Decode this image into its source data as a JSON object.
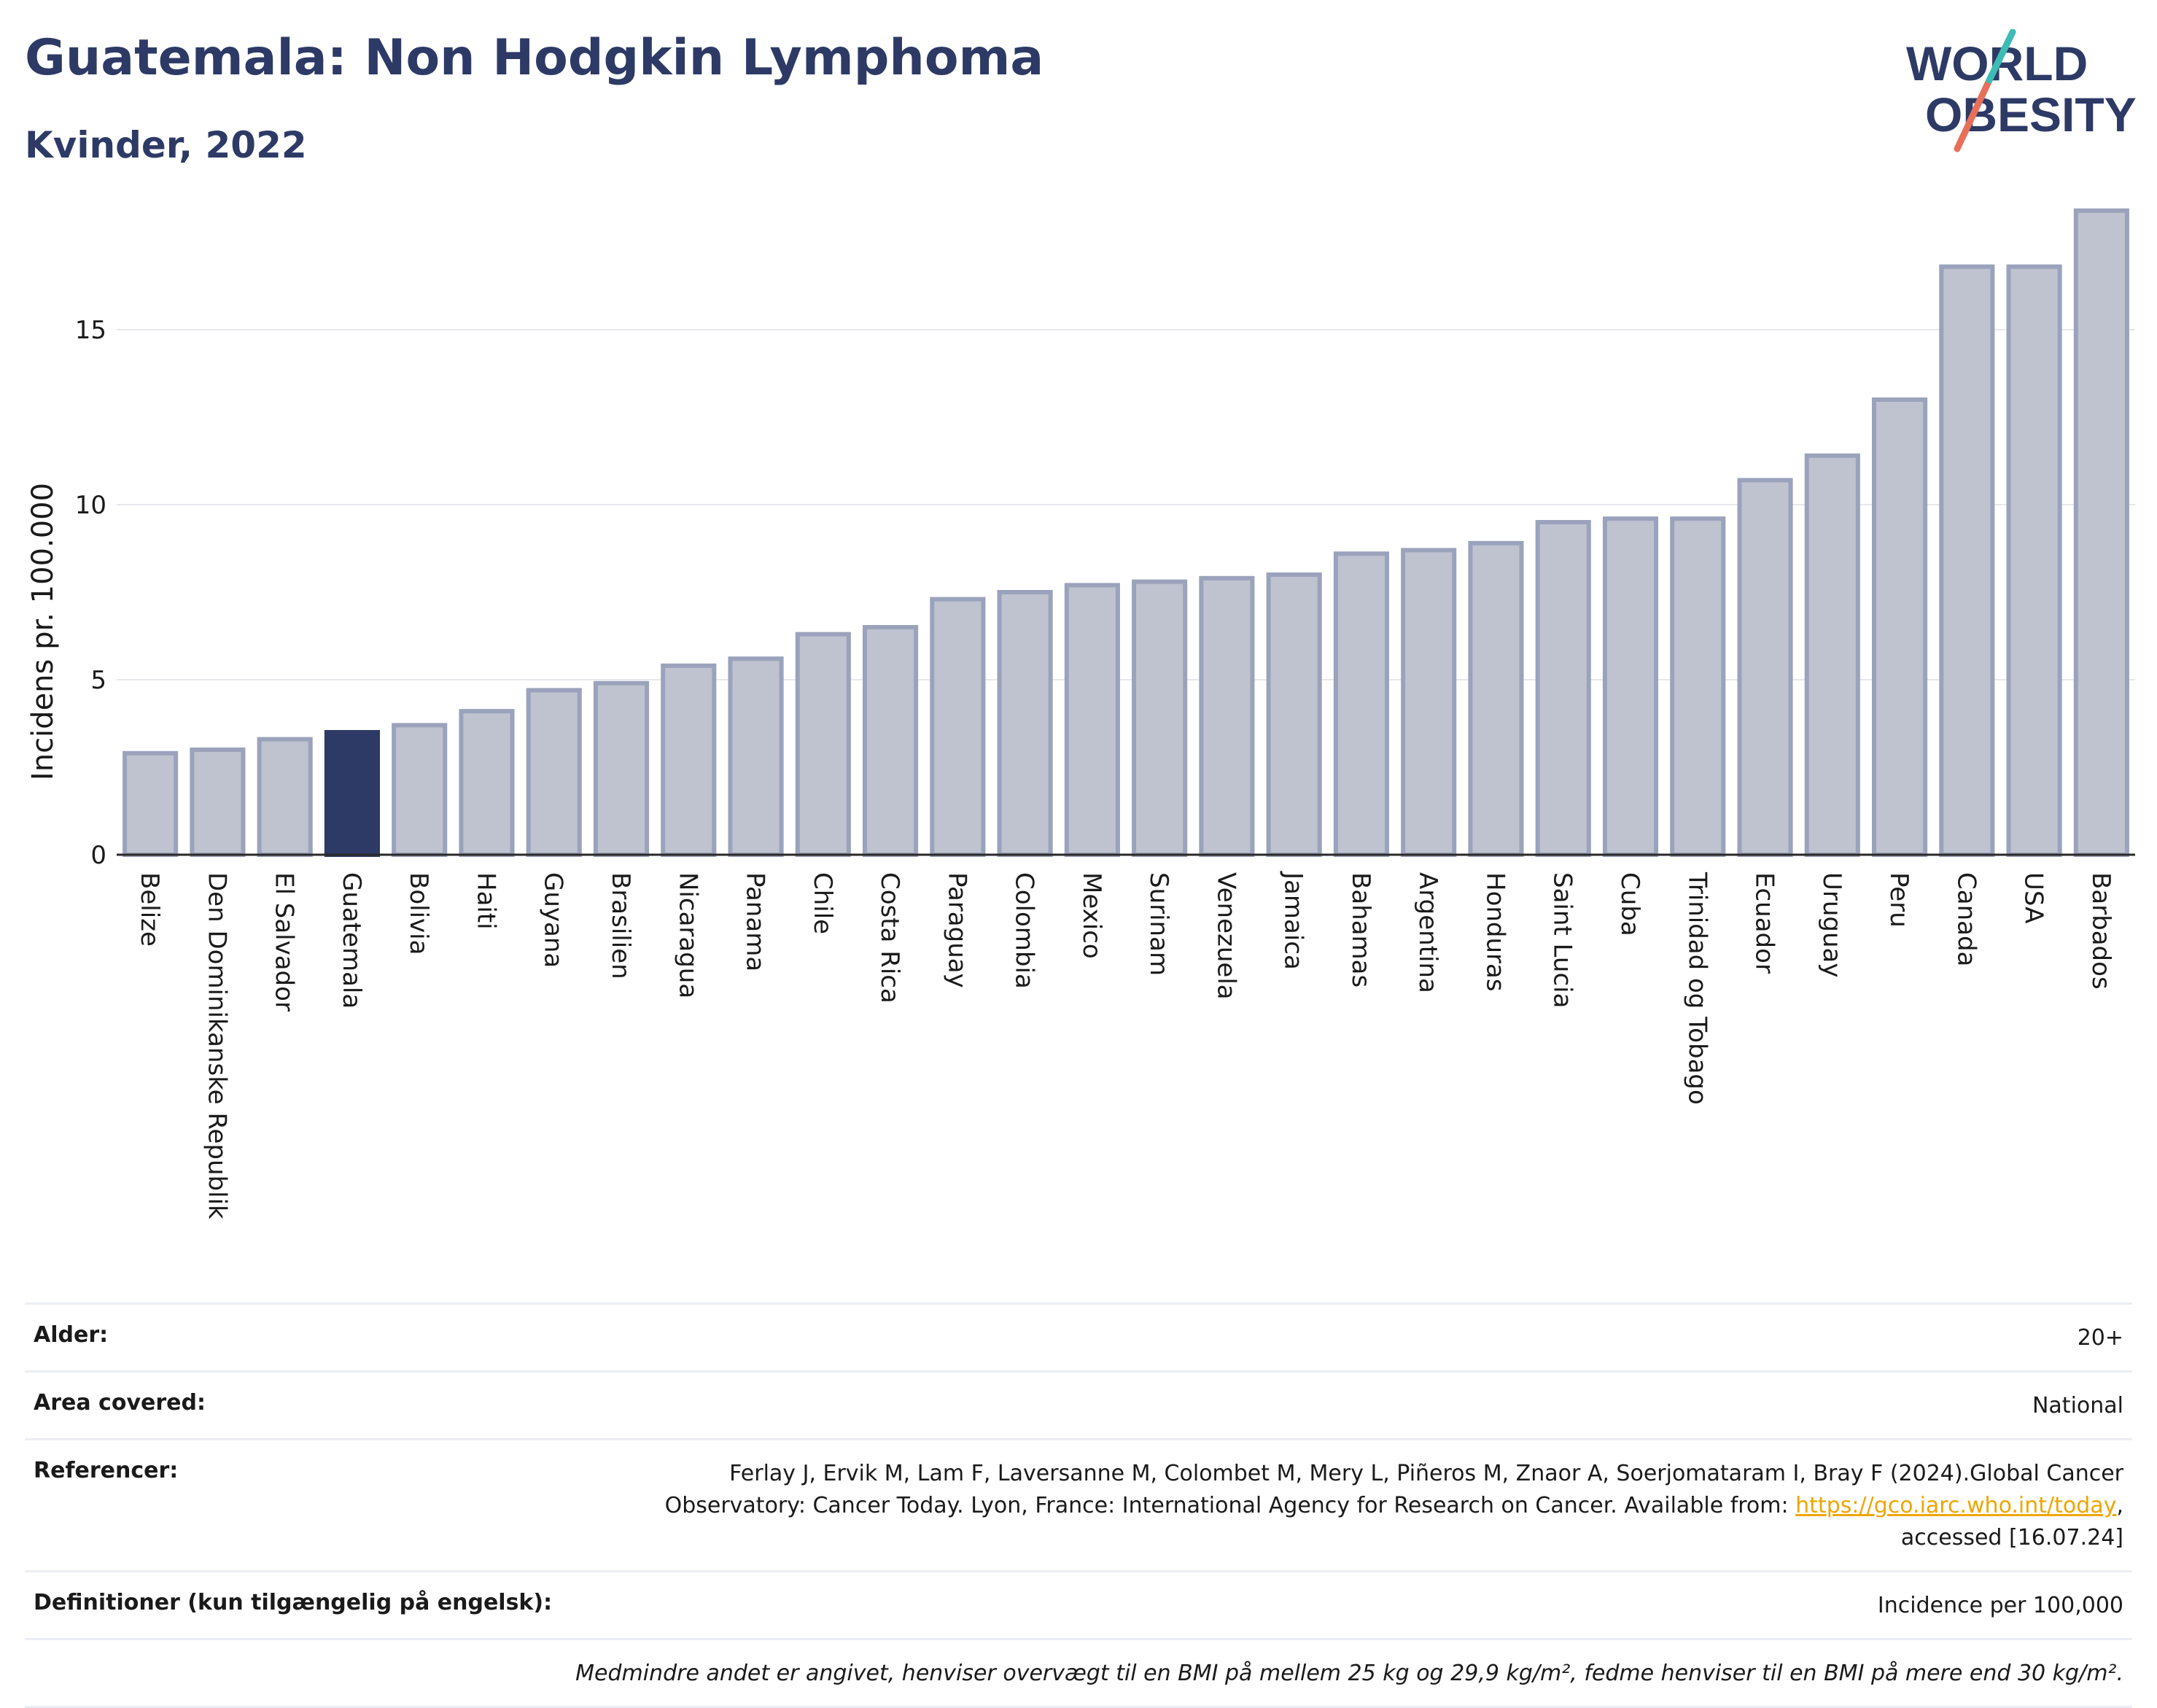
{
  "header": {
    "title": "Guatemala: Non Hodgkin Lymphoma",
    "subtitle": "Kvinder, 2022"
  },
  "logo": {
    "line1": "WORLD",
    "line2": "OBESITY"
  },
  "colors": {
    "highlight": "#2d3a66",
    "bar": "#bfc3d0",
    "bar_stroke": "#9ba2bb",
    "title": "#2d3a66"
  },
  "chart_data": {
    "type": "bar",
    "ylabel": "Incidens pr. 100.000",
    "xlabel": "",
    "ylim": [
      0,
      19
    ],
    "yticks": [
      0,
      5,
      10,
      15
    ],
    "grid": true,
    "highlight": "Guatemala",
    "categories": [
      "Belize",
      "Den Dominikanske Republik",
      "El Salvador",
      "Guatemala",
      "Bolivia",
      "Haiti",
      "Guyana",
      "Brasilien",
      "Nicaragua",
      "Panama",
      "Chile",
      "Costa Rica",
      "Paraguay",
      "Colombia",
      "Mexico",
      "Surinam",
      "Venezuela",
      "Jamaica",
      "Bahamas",
      "Argentina",
      "Honduras",
      "Saint Lucia",
      "Cuba",
      "Trinidad og Tobago",
      "Ecuador",
      "Uruguay",
      "Peru",
      "Canada",
      "USA",
      "Barbados"
    ],
    "values": [
      2.9,
      3.0,
      3.3,
      3.5,
      3.7,
      4.1,
      4.7,
      4.9,
      5.4,
      5.6,
      6.3,
      6.5,
      7.3,
      7.5,
      7.7,
      7.8,
      7.9,
      8.0,
      8.6,
      8.7,
      8.9,
      9.5,
      9.6,
      9.6,
      10.7,
      11.4,
      13.0,
      16.8,
      16.8,
      18.4
    ]
  },
  "info": {
    "age_label": "Alder:",
    "age_value": "20+",
    "area_label": "Area covered:",
    "area_value": "National",
    "ref_label": "Referencer:",
    "ref_text_1": "Ferlay J, Ervik M, Lam F, Laversanne M, Colombet M, Mery L, Piñeros M, Znaor A, Soerjomataram I, Bray F (2024).Global Cancer",
    "ref_text_2": "Observatory: Cancer Today. Lyon, France: International Agency for Research on Cancer. Available from: ",
    "ref_link": "https://gco.iarc.who.int/today",
    "ref_text_3": ",",
    "ref_text_4": "accessed [16.07.24]",
    "def_label": "Definitioner (kun tilgængelig på engelsk):",
    "def_value": "Incidence per 100,000",
    "note": "Medmindre andet er angivet, henviser overvægt til en BMI på mellem 25 kg og 29,9 kg/m², fedme henviser til en BMI på mere end 30 kg/m²."
  }
}
